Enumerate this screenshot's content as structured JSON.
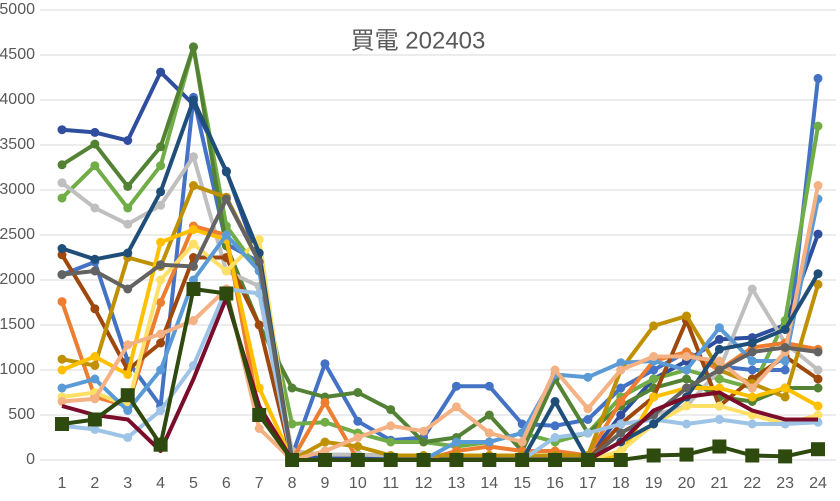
{
  "chart_data": {
    "type": "line",
    "title": "買電 202403",
    "categories": [
      "1",
      "2",
      "3",
      "4",
      "5",
      "6",
      "7",
      "8",
      "9",
      "10",
      "11",
      "12",
      "13",
      "14",
      "15",
      "16",
      "17",
      "18",
      "19",
      "20",
      "21",
      "22",
      "23",
      "24"
    ],
    "ylim": [
      0,
      5000
    ],
    "yticks": [
      0,
      500,
      1000,
      1500,
      2000,
      2500,
      3000,
      3500,
      4000,
      4500,
      5000
    ],
    "grid": true,
    "series": [
      {
        "color": "#4472c4",
        "marker": "circle",
        "values": [
          2060,
          2200,
          1100,
          600,
          4030,
          2400,
          2200,
          50,
          1070,
          430,
          220,
          250,
          820,
          820,
          400,
          380,
          450,
          800,
          1000,
          1200,
          1040,
          1000,
          1000,
          4240
        ]
      },
      {
        "color": "#2f4f9e",
        "marker": "circle",
        "values": [
          3670,
          3640,
          3550,
          4310,
          3950,
          3210,
          2200,
          30,
          30,
          30,
          30,
          30,
          30,
          30,
          30,
          30,
          30,
          500,
          900,
          1100,
          1340,
          1360,
          1500,
          2510
        ]
      },
      {
        "color": "#70ad47",
        "marker": "circle",
        "values": [
          2910,
          3270,
          2800,
          3270,
          4590,
          2600,
          2100,
          400,
          420,
          300,
          200,
          200,
          150,
          200,
          300,
          200,
          300,
          700,
          900,
          1000,
          900,
          800,
          1550,
          3710
        ]
      },
      {
        "color": "#548235",
        "marker": "circle",
        "values": [
          3280,
          3510,
          3040,
          3480,
          4590,
          2380,
          1500,
          800,
          700,
          750,
          560,
          200,
          250,
          500,
          100,
          900,
          300,
          600,
          800,
          900,
          700,
          650,
          800,
          800
        ]
      },
      {
        "color": "#bfbfbf",
        "marker": "circle",
        "values": [
          3080,
          2800,
          2620,
          2830,
          3370,
          2100,
          1930,
          100,
          60,
          60,
          50,
          50,
          50,
          50,
          50,
          50,
          50,
          300,
          500,
          600,
          1000,
          1900,
          1300,
          1000
        ]
      },
      {
        "color": "#ed7d31",
        "marker": "circle",
        "values": [
          1760,
          700,
          600,
          1750,
          2600,
          2500,
          500,
          0,
          640,
          0,
          0,
          0,
          100,
          150,
          100,
          100,
          50,
          650,
          1100,
          1200,
          1000,
          1250,
          1300,
          1230
        ]
      },
      {
        "color": "#9e480e",
        "marker": "circle",
        "values": [
          2280,
          1680,
          1000,
          1300,
          2250,
          2250,
          1500,
          0,
          0,
          0,
          0,
          0,
          0,
          0,
          0,
          0,
          0,
          400,
          700,
          1550,
          600,
          900,
          1150,
          900
        ]
      },
      {
        "color": "#bf9000",
        "marker": "circle",
        "values": [
          1120,
          1050,
          2250,
          2150,
          3050,
          2920,
          2200,
          0,
          200,
          150,
          50,
          50,
          50,
          50,
          50,
          50,
          50,
          1000,
          1490,
          1600,
          1000,
          850,
          700,
          1950
        ]
      },
      {
        "color": "#ffc000",
        "marker": "circle",
        "values": [
          1000,
          1150,
          950,
          2420,
          2560,
          2450,
          800,
          0,
          0,
          0,
          0,
          0,
          0,
          0,
          0,
          0,
          0,
          50,
          700,
          800,
          800,
          700,
          800,
          600
        ]
      },
      {
        "color": "#ffe066",
        "marker": "circle",
        "values": [
          700,
          750,
          600,
          2000,
          2400,
          2100,
          2450,
          0,
          0,
          0,
          0,
          0,
          0,
          0,
          0,
          0,
          0,
          100,
          400,
          600,
          600,
          500,
          400,
          500
        ]
      },
      {
        "color": "#5b9bd5",
        "marker": "circle",
        "values": [
          800,
          900,
          550,
          1000,
          2000,
          2500,
          2100,
          0,
          0,
          0,
          0,
          0,
          200,
          200,
          300,
          950,
          920,
          1080,
          1100,
          1000,
          1470,
          1100,
          1100,
          2900
        ]
      },
      {
        "color": "#9dc3e6",
        "marker": "circle",
        "values": [
          380,
          340,
          250,
          550,
          1050,
          1900,
          1850,
          0,
          0,
          0,
          0,
          0,
          0,
          0,
          0,
          250,
          300,
          400,
          450,
          400,
          450,
          400,
          400,
          420
        ]
      },
      {
        "color": "#f4b183",
        "marker": "circle",
        "values": [
          650,
          680,
          1280,
          1400,
          1550,
          1900,
          350,
          0,
          100,
          250,
          380,
          320,
          590,
          300,
          200,
          1000,
          570,
          1000,
          1150,
          1150,
          1100,
          800,
          1200,
          3050
        ]
      },
      {
        "color": "#1f4e79",
        "marker": "circle",
        "values": [
          2350,
          2230,
          2300,
          2980,
          4000,
          3200,
          2300,
          0,
          0,
          0,
          0,
          0,
          0,
          0,
          0,
          650,
          0,
          200,
          400,
          700,
          1230,
          1300,
          1450,
          2070
        ]
      },
      {
        "color": "#636363",
        "marker": "circle",
        "values": [
          2060,
          2100,
          1900,
          2170,
          2150,
          2900,
          2200,
          0,
          0,
          0,
          0,
          0,
          0,
          0,
          0,
          0,
          0,
          300,
          500,
          800,
          1000,
          1200,
          1250,
          1200
        ]
      },
      {
        "color": "#7b0c2a",
        "marker": "none",
        "values": [
          600,
          500,
          450,
          100,
          900,
          1800,
          600,
          0,
          0,
          0,
          0,
          0,
          0,
          0,
          0,
          0,
          0,
          200,
          550,
          700,
          750,
          550,
          450,
          450
        ]
      },
      {
        "color": "#2e4a0e",
        "marker": "square",
        "values": [
          400,
          450,
          720,
          170,
          1900,
          1850,
          500,
          0,
          0,
          0,
          0,
          0,
          0,
          0,
          0,
          0,
          0,
          0,
          50,
          60,
          150,
          50,
          40,
          120
        ]
      }
    ]
  }
}
